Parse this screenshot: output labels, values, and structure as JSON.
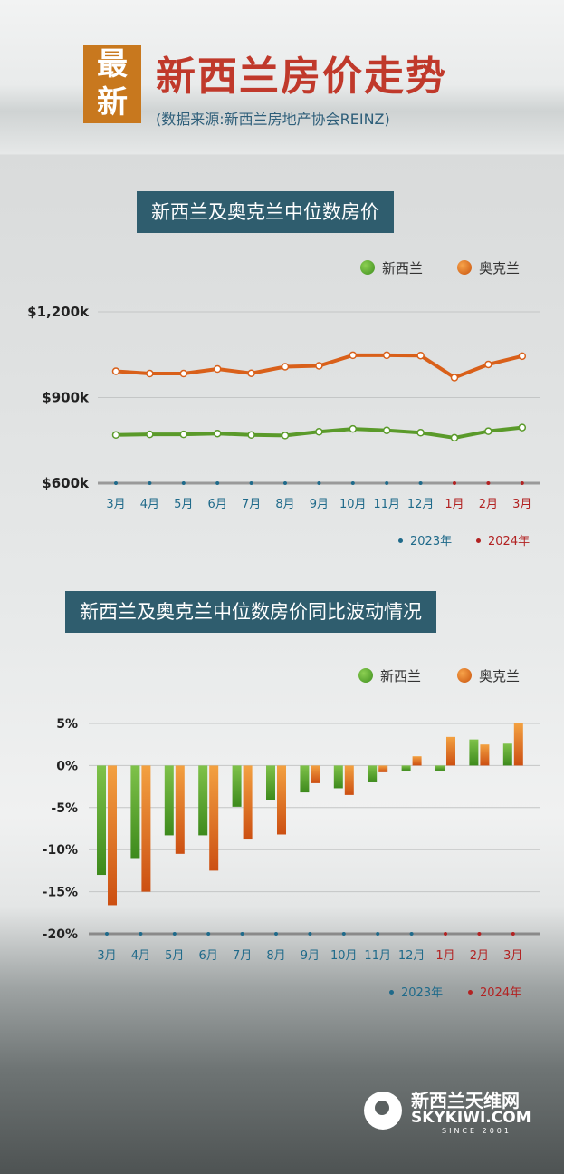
{
  "header": {
    "badge": [
      "最",
      "新"
    ],
    "title": "新西兰房价走势",
    "source": "(数据来源:新西兰房地产协会REINZ)"
  },
  "legend": {
    "nz": "新西兰",
    "akl": "奥克兰"
  },
  "year_legend": {
    "y2023": "2023年",
    "y2024": "2024年"
  },
  "colors": {
    "nz": "#5a9a2a",
    "akl": "#d9601a",
    "y2023": "#1f6a8a",
    "y2024": "#b22222",
    "title_bg": "#2f5d6e"
  },
  "logo": {
    "cn": "新西兰天维网",
    "en": "SKYKIWI.COM",
    "since": "SINCE 2001"
  },
  "chart_data": [
    {
      "type": "line",
      "title": "新西兰及奥克兰中位数房价",
      "categories": [
        "3月",
        "4月",
        "5月",
        "6月",
        "7月",
        "8月",
        "9月",
        "10月",
        "11月",
        "12月",
        "1月",
        "2月",
        "3月"
      ],
      "category_years": [
        "2023",
        "2023",
        "2023",
        "2023",
        "2023",
        "2023",
        "2023",
        "2023",
        "2023",
        "2023",
        "2024",
        "2024",
        "2024"
      ],
      "y_ticks": [
        "$600k",
        "$900k",
        "$1,200k"
      ],
      "ylim": [
        600000,
        1200000
      ],
      "grid": true,
      "legend_position": "top-right",
      "series": [
        {
          "name": "新西兰",
          "values": [
            769000,
            771000,
            771000,
            774000,
            769000,
            767000,
            780000,
            790000,
            785000,
            777000,
            759000,
            782000,
            795000
          ]
        },
        {
          "name": "奥克兰",
          "values": [
            992000,
            984000,
            984000,
            1000000,
            985000,
            1008000,
            1011000,
            1048000,
            1048000,
            1047000,
            970000,
            1016000,
            1045000
          ]
        }
      ]
    },
    {
      "type": "bar",
      "title": "新西兰及奥克兰中位数房价同比波动情况",
      "categories": [
        "3月",
        "4月",
        "5月",
        "6月",
        "7月",
        "8月",
        "9月",
        "10月",
        "11月",
        "12月",
        "1月",
        "2月",
        "3月"
      ],
      "category_years": [
        "2023",
        "2023",
        "2023",
        "2023",
        "2023",
        "2023",
        "2023",
        "2023",
        "2023",
        "2023",
        "2024",
        "2024",
        "2024"
      ],
      "y_ticks": [
        "-20%",
        "-15%",
        "-10%",
        "-5%",
        "0%",
        "5%"
      ],
      "ylim": [
        -20,
        5
      ],
      "grid": true,
      "legend_position": "top-right",
      "series": [
        {
          "name": "新西兰",
          "values": [
            -13.0,
            -11.0,
            -8.3,
            -8.3,
            -4.9,
            -4.1,
            -3.2,
            -2.7,
            -2.0,
            -0.6,
            -0.6,
            3.1,
            2.6
          ]
        },
        {
          "name": "奥克兰",
          "values": [
            -16.6,
            -15.0,
            -10.5,
            -12.5,
            -8.8,
            -8.2,
            -2.1,
            -3.5,
            -0.8,
            1.1,
            3.4,
            2.5,
            5.0
          ]
        }
      ]
    }
  ]
}
